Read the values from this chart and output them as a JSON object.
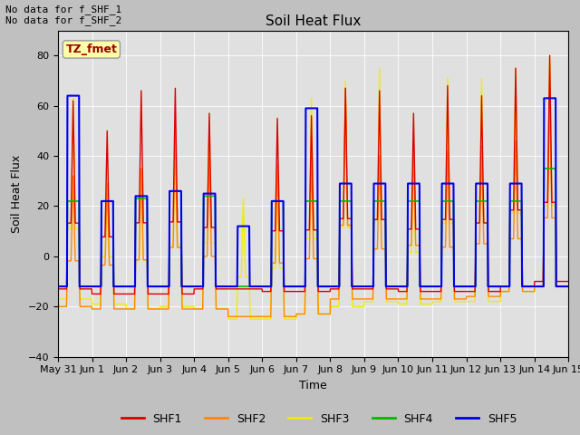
{
  "title": "Soil Heat Flux",
  "ylabel": "Soil Heat Flux",
  "xlabel": "Time",
  "annotation_text": "No data for f_SHF_1\nNo data for f_SHF_2",
  "tz_label": "TZ_fmet",
  "ylim": [
    -40,
    90
  ],
  "yticks": [
    -40,
    -20,
    0,
    20,
    40,
    60,
    80
  ],
  "fig_bg_color": "#c0c0c0",
  "plot_bg_color": "#e0e0e0",
  "line_colors": {
    "SHF1": "#dd0000",
    "SHF2": "#ff8800",
    "SHF3": "#eeee00",
    "SHF4": "#00bb00",
    "SHF5": "#0000ee"
  },
  "x_tick_labels": [
    "May 31",
    "Jun 1",
    "Jun 2",
    "Jun 3",
    "Jun 4",
    "Jun 5",
    "Jun 6",
    "Jun 7",
    "Jun 8",
    "Jun 9",
    "Jun 10",
    "Jun 11",
    "Jun 12",
    "Jun 13",
    "Jun 14",
    "Jun 15"
  ],
  "legend_labels": [
    "SHF1",
    "SHF2",
    "SHF3",
    "SHF4",
    "SHF5"
  ],
  "n_days": 15,
  "pts_per_day": 144,
  "peaks_shf1": [
    62,
    50,
    66,
    67,
    57,
    0,
    55,
    56,
    67,
    66,
    57,
    68,
    64,
    75,
    80
  ],
  "peaks_shf2": [
    32,
    29,
    35,
    49,
    39,
    0,
    37,
    40,
    67,
    40,
    44,
    42,
    44,
    46,
    66
  ],
  "peaks_shf3": [
    63,
    35,
    35,
    50,
    54,
    23,
    33,
    63,
    70,
    75,
    40,
    71,
    71,
    75,
    80
  ],
  "peaks_shf4": [
    22,
    22,
    23,
    26,
    24,
    0,
    22,
    22,
    22,
    22,
    22,
    22,
    22,
    22,
    35
  ],
  "peaks_shf5": [
    64,
    22,
    24,
    26,
    25,
    12,
    22,
    59,
    29,
    29,
    29,
    29,
    29,
    29,
    63
  ],
  "troughs_shf1": [
    -13,
    -15,
    -15,
    -15,
    -13,
    -13,
    -14,
    -14,
    -13,
    -13,
    -14,
    -14,
    -14,
    -12,
    -10
  ],
  "troughs_shf2": [
    -20,
    -21,
    -21,
    -21,
    -21,
    -24,
    -24,
    -23,
    -17,
    -17,
    -17,
    -17,
    -16,
    -14,
    -12
  ],
  "troughs_shf3": [
    -17,
    -19,
    -21,
    -20,
    -21,
    -25,
    -25,
    -23,
    -20,
    -18,
    -19,
    -18,
    -18,
    -14,
    -12
  ],
  "troughs_shf4": [
    -12,
    -12,
    -12,
    -12,
    -12,
    -12,
    -12,
    -12,
    -12,
    -12,
    -12,
    -12,
    -12,
    -12,
    -12
  ],
  "troughs_shf5": [
    -12,
    -12,
    -12,
    -12,
    -12,
    -12,
    -12,
    -12,
    -12,
    -12,
    -12,
    -12,
    -12,
    -12,
    -12
  ],
  "day_start_fracs": [
    0.28,
    0.28,
    0.28,
    0.28,
    0.28,
    0.28,
    0.28,
    0.28,
    0.28,
    0.28,
    0.28,
    0.28,
    0.28,
    0.28,
    0.28
  ],
  "day_end_fracs": [
    0.62,
    0.62,
    0.62,
    0.62,
    0.62,
    0.62,
    0.62,
    0.62,
    0.62,
    0.62,
    0.62,
    0.62,
    0.62,
    0.62,
    0.62
  ]
}
